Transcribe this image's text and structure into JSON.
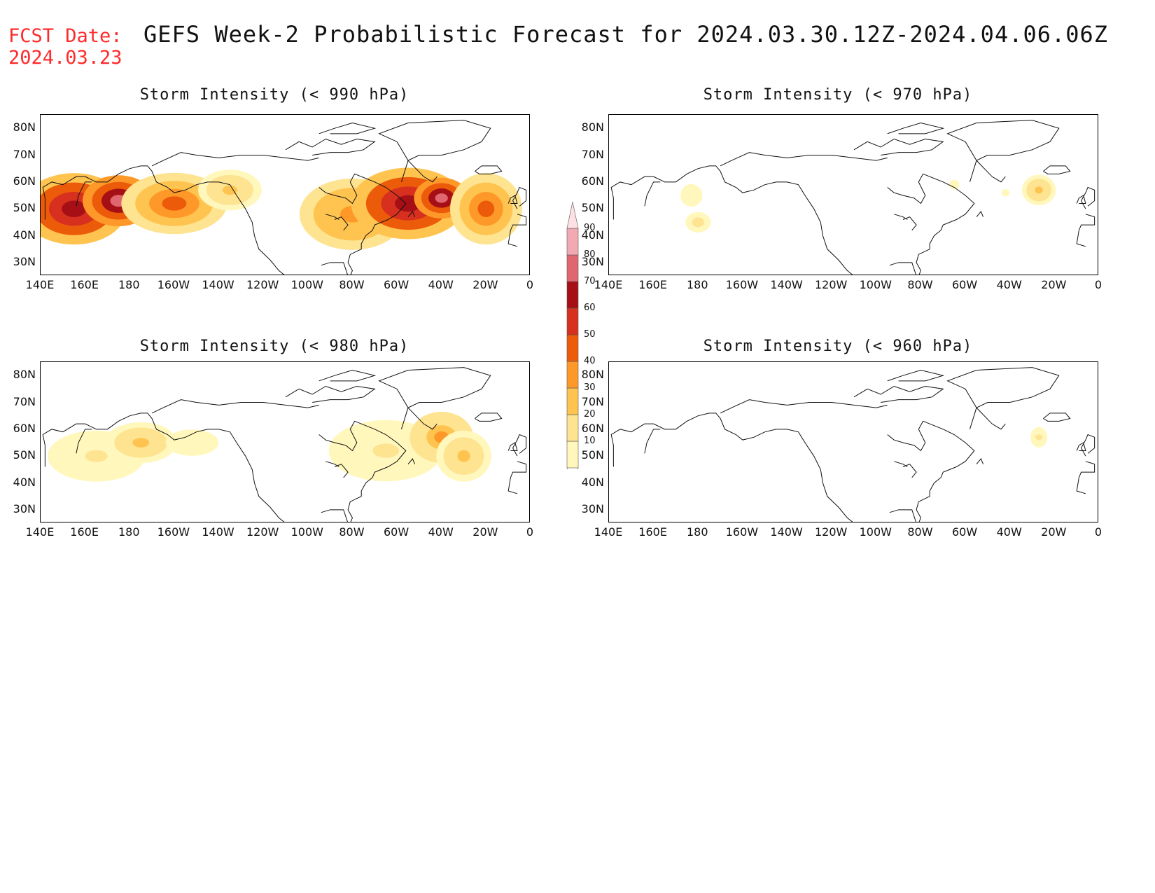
{
  "fcst_date": {
    "label": "FCST Date:",
    "value": "2024.03.23"
  },
  "title": "GEFS Week-2 Probabilistic Forecast for 2024.03.30.12Z-2024.04.06.06Z",
  "y_ticks": [
    "80N",
    "70N",
    "60N",
    "50N",
    "40N",
    "30N"
  ],
  "x_ticks": [
    "140E",
    "160E",
    "180",
    "160W",
    "140W",
    "120W",
    "100W",
    "80W",
    "60W",
    "40W",
    "20W",
    "0"
  ],
  "colorbar": {
    "levels": [
      "10",
      "20",
      "30",
      "40",
      "50",
      "60",
      "70",
      "80",
      "90"
    ],
    "colors": [
      "#fff7bc",
      "#fee391",
      "#fec44f",
      "#fe9929",
      "#ec5b0a",
      "#d7301f",
      "#a50f15",
      "#e06670",
      "#f2aab2",
      "#fde0e4"
    ]
  },
  "panels": [
    {
      "id": "p990",
      "title": "Storm Intensity (< 990 hPa)",
      "fields": [
        {
          "lon": 155,
          "lat": 50,
          "prob": 75,
          "rlon": 22,
          "rlat": 12
        },
        {
          "lon": 175,
          "lat": 53,
          "prob": 85,
          "rlon": 14,
          "rlat": 8
        },
        {
          "lon": 200,
          "lat": 52,
          "prob": 55,
          "rlon": 22,
          "rlat": 10
        },
        {
          "lon": 225,
          "lat": 57,
          "prob": 30,
          "rlon": 12,
          "rlat": 6
        },
        {
          "lon": 280,
          "lat": 48,
          "prob": 45,
          "rlon": 22,
          "rlat": 12
        },
        {
          "lon": 305,
          "lat": 52,
          "prob": 75,
          "rlon": 24,
          "rlat": 12
        },
        {
          "lon": 320,
          "lat": 54,
          "prob": 85,
          "rlon": 10,
          "rlat": 6
        },
        {
          "lon": 340,
          "lat": 50,
          "prob": 55,
          "rlon": 14,
          "rlat": 12
        }
      ]
    },
    {
      "id": "p970",
      "title": "Storm Intensity (< 970 hPa)",
      "fields": [
        {
          "lon": 177,
          "lat": 55,
          "prob": 15,
          "rlon": 4,
          "rlat": 4
        },
        {
          "lon": 180,
          "lat": 45,
          "prob": 25,
          "rlon": 3,
          "rlat": 2
        },
        {
          "lon": 333,
          "lat": 57,
          "prob": 30,
          "rlon": 5,
          "rlat": 4
        },
        {
          "lon": 295,
          "lat": 59,
          "prob": 12,
          "rlon": 2,
          "rlat": 2
        },
        {
          "lon": 318,
          "lat": 56,
          "prob": 12,
          "rlon": 1,
          "rlat": 1
        }
      ]
    },
    {
      "id": "p980",
      "title": "Storm Intensity (< 980 hPa)",
      "fields": [
        {
          "lon": 165,
          "lat": 50,
          "prob": 20,
          "rlon": 20,
          "rlat": 8
        },
        {
          "lon": 185,
          "lat": 55,
          "prob": 35,
          "rlon": 14,
          "rlat": 6
        },
        {
          "lon": 208,
          "lat": 55,
          "prob": 15,
          "rlon": 14,
          "rlat": 5
        },
        {
          "lon": 295,
          "lat": 52,
          "prob": 20,
          "rlon": 24,
          "rlat": 10
        },
        {
          "lon": 320,
          "lat": 57,
          "prob": 40,
          "rlon": 12,
          "rlat": 8
        },
        {
          "lon": 330,
          "lat": 50,
          "prob": 30,
          "rlon": 10,
          "rlat": 8
        }
      ]
    },
    {
      "id": "p960",
      "title": "Storm Intensity (< 960 hPa)",
      "fields": [
        {
          "lon": 333,
          "lat": 57,
          "prob": 20,
          "rlon": 1,
          "rlat": 2
        }
      ]
    }
  ],
  "coastlines": [
    [
      [
        142,
        46
      ],
      [
        142,
        54
      ],
      [
        141,
        58
      ],
      [
        145,
        60
      ],
      [
        150,
        59
      ],
      [
        156,
        62
      ],
      [
        160,
        62
      ],
      [
        165,
        60
      ],
      [
        170,
        60
      ],
      [
        175,
        63
      ],
      [
        180,
        65
      ],
      [
        185,
        66
      ],
      [
        188,
        66
      ],
      [
        190,
        64
      ],
      [
        192,
        60
      ],
      [
        197,
        58
      ],
      [
        200,
        56
      ],
      [
        205,
        57
      ],
      [
        210,
        59
      ],
      [
        215,
        60
      ],
      [
        220,
        60
      ],
      [
        225,
        59
      ],
      [
        228,
        55
      ],
      [
        232,
        50
      ],
      [
        235,
        45
      ],
      [
        236,
        40
      ],
      [
        238,
        35
      ],
      [
        243,
        31
      ],
      [
        247,
        27
      ],
      [
        250,
        25
      ]
    ],
    [
      [
        156,
        51
      ],
      [
        157,
        55
      ],
      [
        160,
        60
      ],
      [
        163,
        60
      ]
    ],
    [
      [
        190,
        66
      ],
      [
        195,
        68
      ],
      [
        203,
        71
      ],
      [
        210,
        70
      ],
      [
        220,
        69
      ],
      [
        230,
        70
      ],
      [
        240,
        70
      ],
      [
        250,
        69
      ],
      [
        260,
        68
      ],
      [
        265,
        69
      ]
    ],
    [
      [
        265,
        58
      ],
      [
        268,
        56
      ],
      [
        272,
        55
      ],
      [
        277,
        54
      ],
      [
        280,
        52
      ],
      [
        282,
        55
      ],
      [
        279,
        60
      ],
      [
        281,
        63
      ],
      [
        290,
        60
      ],
      [
        295,
        58
      ],
      [
        300,
        55
      ],
      [
        304,
        52
      ],
      [
        300,
        48
      ],
      [
        296,
        46
      ],
      [
        290,
        44
      ],
      [
        289,
        42
      ],
      [
        286,
        40
      ],
      [
        284,
        37
      ],
      [
        284,
        35
      ],
      [
        279,
        33
      ],
      [
        278,
        30
      ],
      [
        280,
        27
      ],
      [
        279,
        25
      ]
    ],
    [
      [
        266,
        29
      ],
      [
        270,
        30
      ],
      [
        273,
        30
      ],
      [
        276,
        30
      ],
      [
        278,
        25
      ]
    ],
    [
      [
        302,
        60
      ],
      [
        305,
        68
      ],
      [
        310,
        70
      ],
      [
        320,
        70
      ],
      [
        330,
        72
      ],
      [
        338,
        75
      ],
      [
        342,
        80
      ],
      [
        330,
        83
      ],
      [
        305,
        82
      ],
      [
        292,
        78
      ],
      [
        300,
        75
      ],
      [
        305,
        68
      ],
      [
        312,
        62
      ],
      [
        316,
        60
      ],
      [
        318,
        62
      ]
    ],
    [
      [
        335,
        64
      ],
      [
        338,
        66
      ],
      [
        345,
        66
      ],
      [
        347,
        64
      ],
      [
        342,
        63
      ],
      [
        337,
        63
      ],
      [
        335,
        64
      ]
    ],
    [
      [
        354,
        50
      ],
      [
        352,
        53
      ],
      [
        354,
        56
      ],
      [
        355,
        58
      ],
      [
        358,
        57
      ],
      [
        358,
        53
      ],
      [
        355,
        51
      ]
    ],
    [
      [
        350,
        52
      ],
      [
        351,
        54
      ],
      [
        353,
        55
      ],
      [
        354,
        52
      ],
      [
        351,
        52
      ]
    ],
    [
      [
        354,
        36
      ],
      [
        350,
        37
      ],
      [
        351,
        42
      ],
      [
        352,
        44
      ],
      [
        358,
        44
      ],
      [
        358,
        47
      ],
      [
        354,
        48
      ]
    ],
    [
      [
        250,
        72
      ],
      [
        256,
        75
      ],
      [
        262,
        73
      ],
      [
        268,
        76
      ],
      [
        275,
        74
      ],
      [
        282,
        76
      ],
      [
        290,
        75
      ],
      [
        285,
        72
      ],
      [
        278,
        71
      ],
      [
        270,
        71
      ],
      [
        262,
        70
      ]
    ],
    [
      [
        265,
        78
      ],
      [
        272,
        80
      ],
      [
        280,
        82
      ],
      [
        290,
        80
      ],
      [
        282,
        78
      ],
      [
        270,
        78
      ]
    ],
    [
      [
        305,
        47
      ],
      [
        307,
        49
      ],
      [
        308,
        47
      ]
    ],
    [
      [
        272,
        46
      ],
      [
        275,
        47
      ],
      [
        278,
        44
      ],
      [
        276,
        42
      ]
    ],
    [
      [
        268,
        48
      ],
      [
        272,
        47
      ],
      [
        274,
        46
      ]
    ]
  ]
}
